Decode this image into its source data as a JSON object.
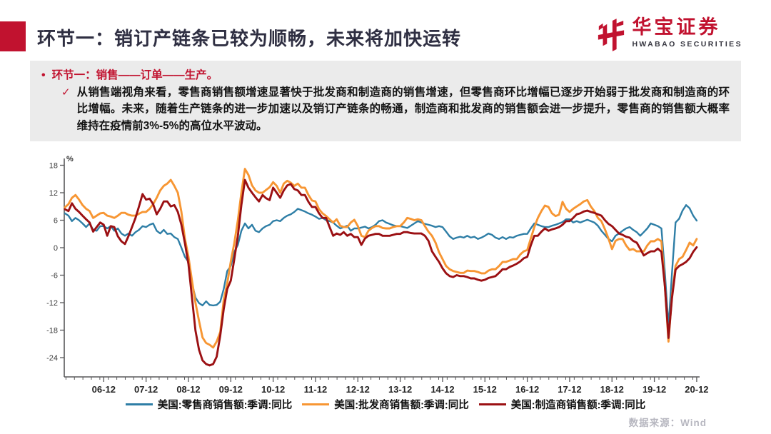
{
  "header": {
    "title": "环节一：销订产链条已较为顺畅，未来将加快运转",
    "logo_cn": "华宝证券",
    "logo_en": "HWABAO SECURITIES"
  },
  "icons": {
    "bullet": "•",
    "check": "✓"
  },
  "callout": {
    "bullet": "环节一：销售——订单——生产。",
    "body": "从销售端视角来看，零售商销售额增速显著快于批发商和制造商的销售增速，但零售商环比增幅已逐步开始弱于批发商和制造商的环比增幅。未来，随着生产链条的进一步加速以及销订产链条的畅通，制造商和批发商的销售额会进一步提升，零售商的销售额大概率维持在疫情前3%-5%的高位水平波动。"
  },
  "chart_data": {
    "type": "line",
    "unit_label": "%",
    "x_months": {
      "start": "2006-01",
      "end": "2020-12"
    },
    "x_tick_labels": [
      "06-12",
      "07-12",
      "08-12",
      "09-12",
      "10-12",
      "11-12",
      "12-12",
      "13-12",
      "14-12",
      "15-12",
      "16-12",
      "17-12",
      "18-12",
      "19-12",
      "20-12"
    ],
    "y_ticks": [
      18,
      12,
      6,
      0,
      -6,
      -12,
      -18,
      -24
    ],
    "ylim": [
      -27,
      19
    ],
    "grid": false,
    "legend_position": "bottom",
    "series": [
      {
        "name": "美国:零售商销售额:季调:同比",
        "color": "#2E7EA6",
        "values": [
          7.5,
          7.0,
          5.8,
          6.5,
          6.0,
          5.3,
          4.5,
          5.3,
          3.9,
          3.7,
          4.7,
          4.7,
          4.2,
          4.7,
          3.7,
          4.2,
          3.1,
          2.6,
          3.1,
          2.6,
          3.4,
          3.9,
          4.7,
          4.5,
          5.0,
          5.3,
          3.7,
          3.1,
          3.9,
          3.0,
          3.1,
          2.3,
          1.9,
          0.0,
          -2.0,
          -3.1,
          -7.8,
          -10.9,
          -12.1,
          -12.6,
          -11.7,
          -12.5,
          -12.6,
          -12.5,
          -11.8,
          -9.0,
          -5.1,
          -4.0,
          -0.9,
          0.6,
          3.7,
          5.3,
          4.2,
          5.0,
          3.7,
          3.4,
          4.2,
          4.7,
          5.0,
          5.8,
          6.0,
          5.8,
          6.5,
          7.0,
          7.3,
          7.8,
          8.5,
          8.2,
          7.9,
          7.5,
          7.2,
          6.8,
          6.3,
          6.5,
          6.0,
          5.8,
          5.5,
          4.8,
          4.2,
          4.5,
          4.8,
          3.7,
          4.2,
          4.2,
          4.4,
          4.6,
          4.2,
          4.5,
          5.0,
          5.8,
          6.0,
          5.5,
          5.2,
          4.9,
          4.7,
          4.7,
          4.5,
          4.3,
          4.8,
          5.3,
          5.8,
          5.5,
          5.2,
          5.0,
          4.8,
          4.5,
          4.7,
          4.5,
          3.5,
          2.5,
          1.9,
          2.2,
          2.4,
          2.2,
          2.6,
          2.2,
          2.4,
          1.9,
          2.2,
          2.6,
          3.1,
          2.8,
          2.2,
          1.9,
          2.3,
          1.9,
          2.3,
          2.2,
          2.6,
          2.8,
          3.0,
          3.0,
          4.2,
          5.3,
          5.0,
          4.7,
          4.5,
          4.5,
          4.8,
          5.0,
          5.3,
          5.6,
          6.2,
          6.2,
          5.5,
          5.8,
          5.5,
          5.8,
          6.1,
          5.8,
          5.5,
          4.8,
          3.7,
          2.8,
          1.9,
          1.4,
          2.6,
          3.1,
          3.7,
          4.2,
          4.5,
          3.9,
          3.4,
          2.6,
          3.4,
          4.2,
          5.3,
          5.0,
          4.7,
          4.2,
          -5.5,
          -17.3,
          -5.5,
          5.5,
          6.3,
          8.1,
          9.3,
          8.6,
          7.0,
          5.9
        ]
      },
      {
        "name": "美国:批发商销售额:季调:同比",
        "color": "#F79633",
        "values": [
          8.8,
          9.5,
          10.9,
          11.5,
          10.5,
          9.3,
          8.5,
          8.0,
          6.5,
          7.0,
          7.5,
          7.6,
          7.0,
          6.8,
          6.5,
          7.0,
          7.6,
          7.6,
          7.2,
          7.0,
          7.0,
          7.4,
          7.8,
          7.8,
          8.5,
          9.5,
          10.9,
          12.5,
          13.5,
          14.0,
          14.8,
          13.5,
          12.0,
          7.8,
          2.0,
          -2.0,
          -7.2,
          -12.0,
          -16.0,
          -19.6,
          -20.8,
          -21.2,
          -21.8,
          -20.5,
          -18.4,
          -11.4,
          -7.8,
          -3.0,
          1.0,
          6.0,
          12.0,
          17.2,
          15.9,
          13.6,
          12.5,
          12.0,
          12.0,
          12.6,
          13.2,
          14.3,
          13.5,
          12.0,
          14.0,
          14.6,
          14.2,
          13.5,
          14.0,
          13.1,
          13.1,
          11.5,
          10.3,
          10.1,
          8.4,
          7.5,
          6.9,
          6.2,
          5.5,
          6.2,
          4.8,
          4.5,
          4.5,
          5.5,
          6.1,
          4.7,
          2.6,
          2.3,
          3.7,
          4.3,
          4.7,
          4.7,
          4.3,
          4.2,
          4.2,
          4.5,
          4.7,
          4.7,
          5.5,
          6.5,
          6.3,
          6.0,
          6.2,
          6.0,
          4.7,
          3.5,
          2.6,
          1.1,
          -1.0,
          -2.5,
          -4.0,
          -4.7,
          -5.1,
          -5.3,
          -5.5,
          -5.5,
          -5.0,
          -5.1,
          -5.1,
          -5.3,
          -5.6,
          -5.6,
          -5.0,
          -4.7,
          -4.7,
          -4.0,
          -3.1,
          -3.1,
          -2.8,
          -2.5,
          -2.5,
          -1.5,
          -0.8,
          -0.5,
          2.0,
          4.5,
          6.5,
          8.0,
          9.2,
          8.9,
          7.5,
          6.9,
          7.2,
          10.0,
          8.5,
          7.8,
          8.5,
          9.0,
          9.5,
          10.1,
          10.4,
          9.0,
          8.0,
          6.5,
          5.8,
          4.0,
          2.0,
          -0.3,
          1.5,
          1.9,
          1.9,
          0.5,
          -0.5,
          -0.3,
          -0.8,
          -0.8,
          -0.8,
          0.5,
          1.4,
          1.4,
          1.9,
          1.4,
          -8.5,
          -20.5,
          -10.5,
          -4.0,
          -2.5,
          -2.0,
          -0.5,
          1.1,
          0.5,
          1.9
        ]
      },
      {
        "name": "美国:制造商销售额:季调:同比",
        "color": "#9B1013",
        "values": [
          8.4,
          8.0,
          9.7,
          8.5,
          7.8,
          7.0,
          6.2,
          5.5,
          3.5,
          4.5,
          5.5,
          5.0,
          2.6,
          4.7,
          4.5,
          2.5,
          1.4,
          0.8,
          2.5,
          4.5,
          6.5,
          9.0,
          11.7,
          10.5,
          10.7,
          9.5,
          7.3,
          8.5,
          10.1,
          10.1,
          9.0,
          9.3,
          7.8,
          5.0,
          1.0,
          -3.6,
          -10.9,
          -18.1,
          -22.3,
          -24.6,
          -25.4,
          -25.7,
          -25.4,
          -23.8,
          -19.2,
          -13.4,
          -9.0,
          -7.2,
          -2.5,
          2.6,
          9.3,
          14.8,
          13.1,
          12.0,
          11.0,
          10.1,
          11.5,
          10.8,
          10.4,
          13.1,
          12.0,
          10.9,
          12.5,
          13.6,
          13.9,
          12.8,
          12.5,
          11.5,
          11.5,
          10.0,
          8.9,
          8.9,
          7.5,
          6.5,
          6.5,
          4.5,
          2.6,
          3.1,
          2.8,
          3.4,
          2.6,
          3.0,
          2.3,
          2.3,
          0.6,
          2.0,
          2.6,
          2.8,
          3.0,
          3.0,
          2.6,
          2.6,
          2.6,
          2.8,
          3.0,
          3.0,
          3.4,
          3.4,
          3.2,
          3.1,
          3.1,
          3.1,
          2.6,
          1.5,
          -0.8,
          -2.0,
          -3.1,
          -4.5,
          -5.6,
          -6.2,
          -6.4,
          -6.0,
          -6.2,
          -6.2,
          -6.4,
          -6.7,
          -6.7,
          -7.0,
          -7.2,
          -7.0,
          -6.6,
          -6.4,
          -6.2,
          -5.5,
          -4.7,
          -4.7,
          -4.2,
          -3.9,
          -3.5,
          -3.0,
          -2.3,
          -2.0,
          0.5,
          2.6,
          2.6,
          3.5,
          4.2,
          3.7,
          4.0,
          4.2,
          4.5,
          5.0,
          5.8,
          5.8,
          6.5,
          7.3,
          7.5,
          7.9,
          8.1,
          7.8,
          7.6,
          7.3,
          7.0,
          6.0,
          5.2,
          4.7,
          3.9,
          3.1,
          2.8,
          2.4,
          2.2,
          1.5,
          1.1,
          -0.2,
          -1.7,
          -1.2,
          -0.8,
          -0.8,
          -0.2,
          -0.9,
          -8.5,
          -19.7,
          -11.0,
          -4.8,
          -4.0,
          -3.6,
          -3.1,
          -2.3,
          -0.9,
          0.1
        ]
      }
    ]
  },
  "footer": {
    "source": "数据来源：Wind"
  },
  "colors": {
    "accent_red": "#C1122F",
    "title_navy": "#2F2F42",
    "box_gray": "#EBEBEB"
  }
}
